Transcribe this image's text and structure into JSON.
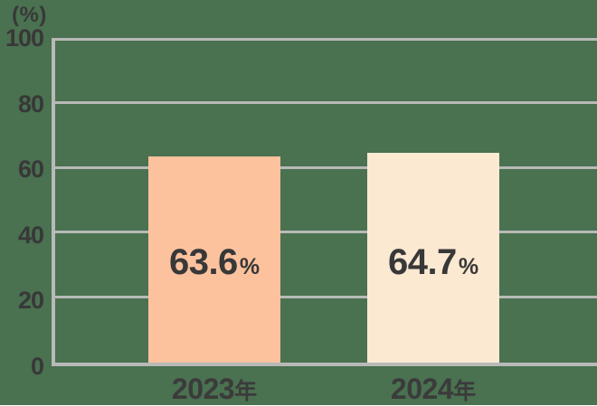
{
  "chart_data": {
    "type": "bar",
    "title": "",
    "y_axis": {
      "unit_label": "(%)",
      "ylim": [
        0,
        100
      ],
      "tick_step": 20,
      "tick_labels": [
        "100",
        "80",
        "60",
        "40",
        "20",
        "0"
      ]
    },
    "categories": [
      "2023年",
      "2024年"
    ],
    "category_parts": [
      {
        "year": "2023",
        "suffix": "年"
      },
      {
        "year": "2024",
        "suffix": "年"
      }
    ],
    "values": [
      63.6,
      64.7
    ],
    "value_labels": [
      {
        "number": "63.6",
        "suffix": "%"
      },
      {
        "number": "64.7",
        "suffix": "%"
      }
    ],
    "grid": true,
    "legend": "none",
    "colors": {
      "background": "#4A7150",
      "bars": [
        "#FBC29D",
        "#FBE9D2"
      ],
      "gridline": "#B7BAB7",
      "label_text": "#383838"
    }
  }
}
